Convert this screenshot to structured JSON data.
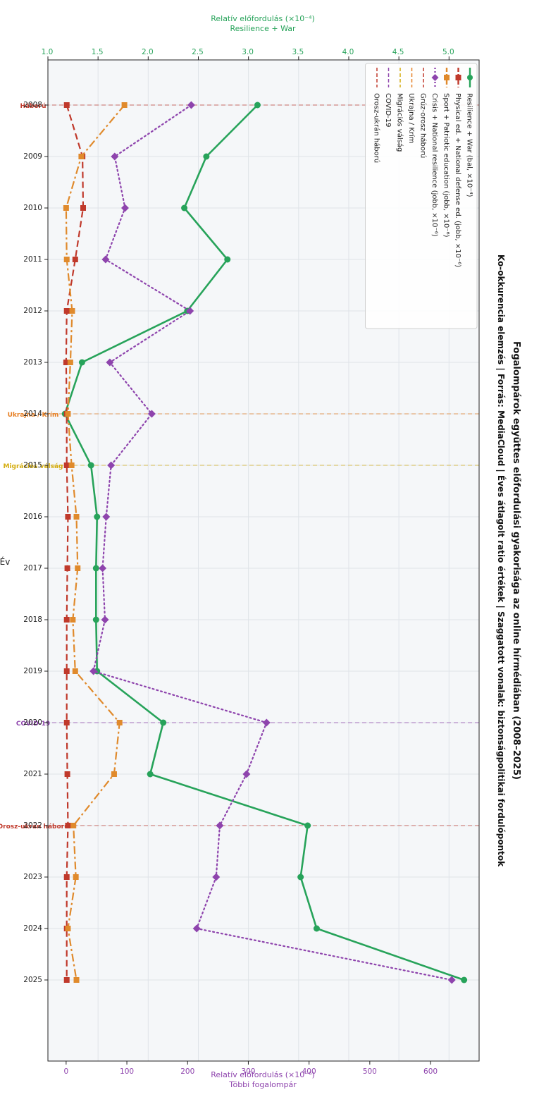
{
  "chart_data": {
    "type": "line",
    "title": "Fogalompárok együttes előfordulási gyakorisága az online hírmédiában (2008–2025)",
    "subtitle": "Ko-okkurencia elemzés  |  Forrás: MediaCloud  |  Éves átlagolt ratio értékek  |  Szaggatott vonalak: biztonságpolitikai fordulópontok",
    "xlabel": "Év",
    "ylabel_left": [
      "Relatív előfordulás  (×10⁻⁴)",
      "Resilience + War"
    ],
    "ylabel_right": [
      "Relatív előfordulás  (×10⁻⁶)",
      "Többi fogalompár"
    ],
    "x": [
      "2008",
      "2009",
      "2010",
      "2011",
      "2012",
      "2013",
      "2014",
      "2015",
      "2016",
      "2017",
      "2018",
      "2019",
      "2020",
      "2021",
      "2022",
      "2023",
      "2024",
      "2025"
    ],
    "ylim_left": [
      1.0,
      5.3
    ],
    "yticks_left": [
      "1.0",
      "1.5",
      "2.0",
      "2.5",
      "3.0",
      "3.5",
      "4.0",
      "4.5",
      "5.0"
    ],
    "ylim_right": [
      -30,
      680
    ],
    "yticks_right": [
      "0",
      "100",
      "200",
      "300",
      "400",
      "500",
      "600"
    ],
    "grid": true,
    "legend_position": "top-right",
    "series": [
      {
        "name": "Resilience + War  (bal, ×10⁻⁴)",
        "axis": "left",
        "color": "#27a35a",
        "style": "solid",
        "marker": "circle",
        "values": [
          3.09,
          2.58,
          2.36,
          2.79,
          2.39,
          1.34,
          1.17,
          1.43,
          1.49,
          1.48,
          1.48,
          1.49,
          2.15,
          2.02,
          3.59,
          3.52,
          3.68,
          5.15
        ]
      },
      {
        "name": "Physical ed. + National defense ed.  (jobb, ×10⁻⁶)",
        "axis": "right",
        "color": "#c0392b",
        "style": "dashed",
        "marker": "square",
        "values": [
          1,
          27,
          28,
          15,
          1,
          0,
          1,
          1,
          3,
          2,
          1,
          1,
          1,
          2,
          3,
          1,
          1,
          1
        ]
      },
      {
        "name": "Sport + Patriotic education  (jobb, ×10⁻⁶)",
        "axis": "right",
        "color": "#e08a2c",
        "style": "dashdot",
        "marker": "square",
        "values": [
          96,
          25,
          0,
          1,
          10,
          7,
          3,
          9,
          17,
          19,
          11,
          15,
          88,
          79,
          12,
          16,
          3,
          17
        ]
      },
      {
        "name": "Crisis + National resilience  (jobb, ×10⁻⁶)",
        "axis": "right",
        "color": "#8e44ad",
        "style": "dotted",
        "marker": "diamond",
        "values": [
          206,
          80,
          97,
          65,
          204,
          72,
          141,
          74,
          66,
          60,
          64,
          45,
          330,
          297,
          253,
          247,
          215,
          635
        ]
      }
    ],
    "events": [
      {
        "year": "2008",
        "label": "Háború",
        "legend": "Grúz-orosz háború",
        "color": "#c0392b"
      },
      {
        "year": "2014",
        "label": "Ukrajna / Krím",
        "legend": "Ukrajna / Krím",
        "color": "#e67e22"
      },
      {
        "year": "2015",
        "label": "Migrációs válság",
        "legend": "Migrációs válság",
        "color": "#d4ac0d"
      },
      {
        "year": "2020",
        "label": "COVID-19",
        "legend": "COVID-19",
        "color": "#8e44ad"
      },
      {
        "year": "2022",
        "label": "Orosz-ukrán háború",
        "legend": "Orosz-ukrán háború",
        "color": "#c0392b"
      }
    ]
  }
}
